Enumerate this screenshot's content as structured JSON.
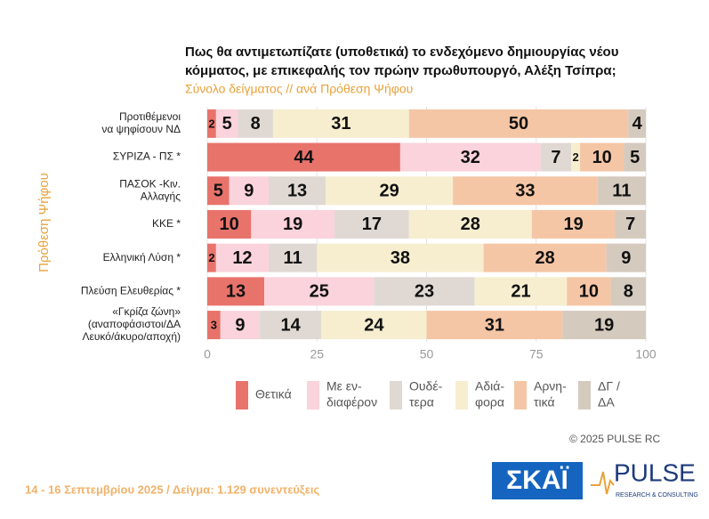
{
  "chart_data": {
    "type": "stacked-bar-horizontal",
    "title": [
      "Πως θα αντιμετωπίζατε (υποθετικά) το ενδεχόμενο δημιουργίας νέου",
      "κόμματος, με επικεφαλής τον πρώην πρωθυπουργό, Αλέξη Τσίπρα;"
    ],
    "subtitle": "Σύνολο δείγματος // ανά Πρόθεση Ψήφου",
    "y_label": "Πρόθεση Ψήφου",
    "categories": [
      [
        "Προτιθέμενοι",
        "να ψηφίσουν ΝΔ"
      ],
      [
        "ΣΥΡΙΖΑ - ΠΣ *"
      ],
      [
        "ΠΑΣΟΚ -Κιν.",
        "Αλλαγής"
      ],
      [
        "ΚΚΕ *"
      ],
      [
        "Ελληνική Λύση *"
      ],
      [
        "Πλεύση Ελευθερίας *"
      ],
      [
        "«Γκρίζα ζώνη»",
        "(αναποφάσιστοι/ΔΑ",
        "Λευκό/άκυρο/αποχή)"
      ]
    ],
    "series": [
      {
        "name": [
          "Θετικά"
        ],
        "color": "#e8736b",
        "values": [
          2,
          44,
          5,
          10,
          2,
          13,
          3
        ]
      },
      {
        "name": [
          "Με εν-",
          "διαφέρον"
        ],
        "color": "#fad3dc",
        "values": [
          5,
          32,
          9,
          19,
          12,
          25,
          9
        ]
      },
      {
        "name": [
          "Ουδέ-",
          "τερα"
        ],
        "color": "#e0d9d3",
        "values": [
          8,
          7,
          13,
          17,
          11,
          23,
          14
        ]
      },
      {
        "name": [
          "Αδιά-",
          "φορα"
        ],
        "color": "#f6eecf",
        "values": [
          31,
          2,
          29,
          28,
          38,
          21,
          24
        ]
      },
      {
        "name": [
          "Αρνη-",
          "τικά"
        ],
        "color": "#f5c6a5",
        "values": [
          50,
          10,
          33,
          19,
          28,
          10,
          31
        ]
      },
      {
        "name": [
          "ΔΓ /",
          "ΔΑ"
        ],
        "color": "#d5cabe",
        "values": [
          4,
          5,
          11,
          7,
          9,
          8,
          19
        ]
      }
    ],
    "xlim": [
      0,
      100
    ],
    "xticks": [
      0,
      25,
      50,
      75,
      100
    ],
    "grid": true
  },
  "footer": "14 - 16 Σεπτεμβρίου 2025  /  Δείγμα:  1.129 συνεντεύξεις",
  "copyright": "©  2025  PULSE RC",
  "logos": {
    "skai": "ΣΚΑΪ",
    "pulse": "PULSE",
    "pulse_sub": "RESEARCH & CONSULTING"
  }
}
